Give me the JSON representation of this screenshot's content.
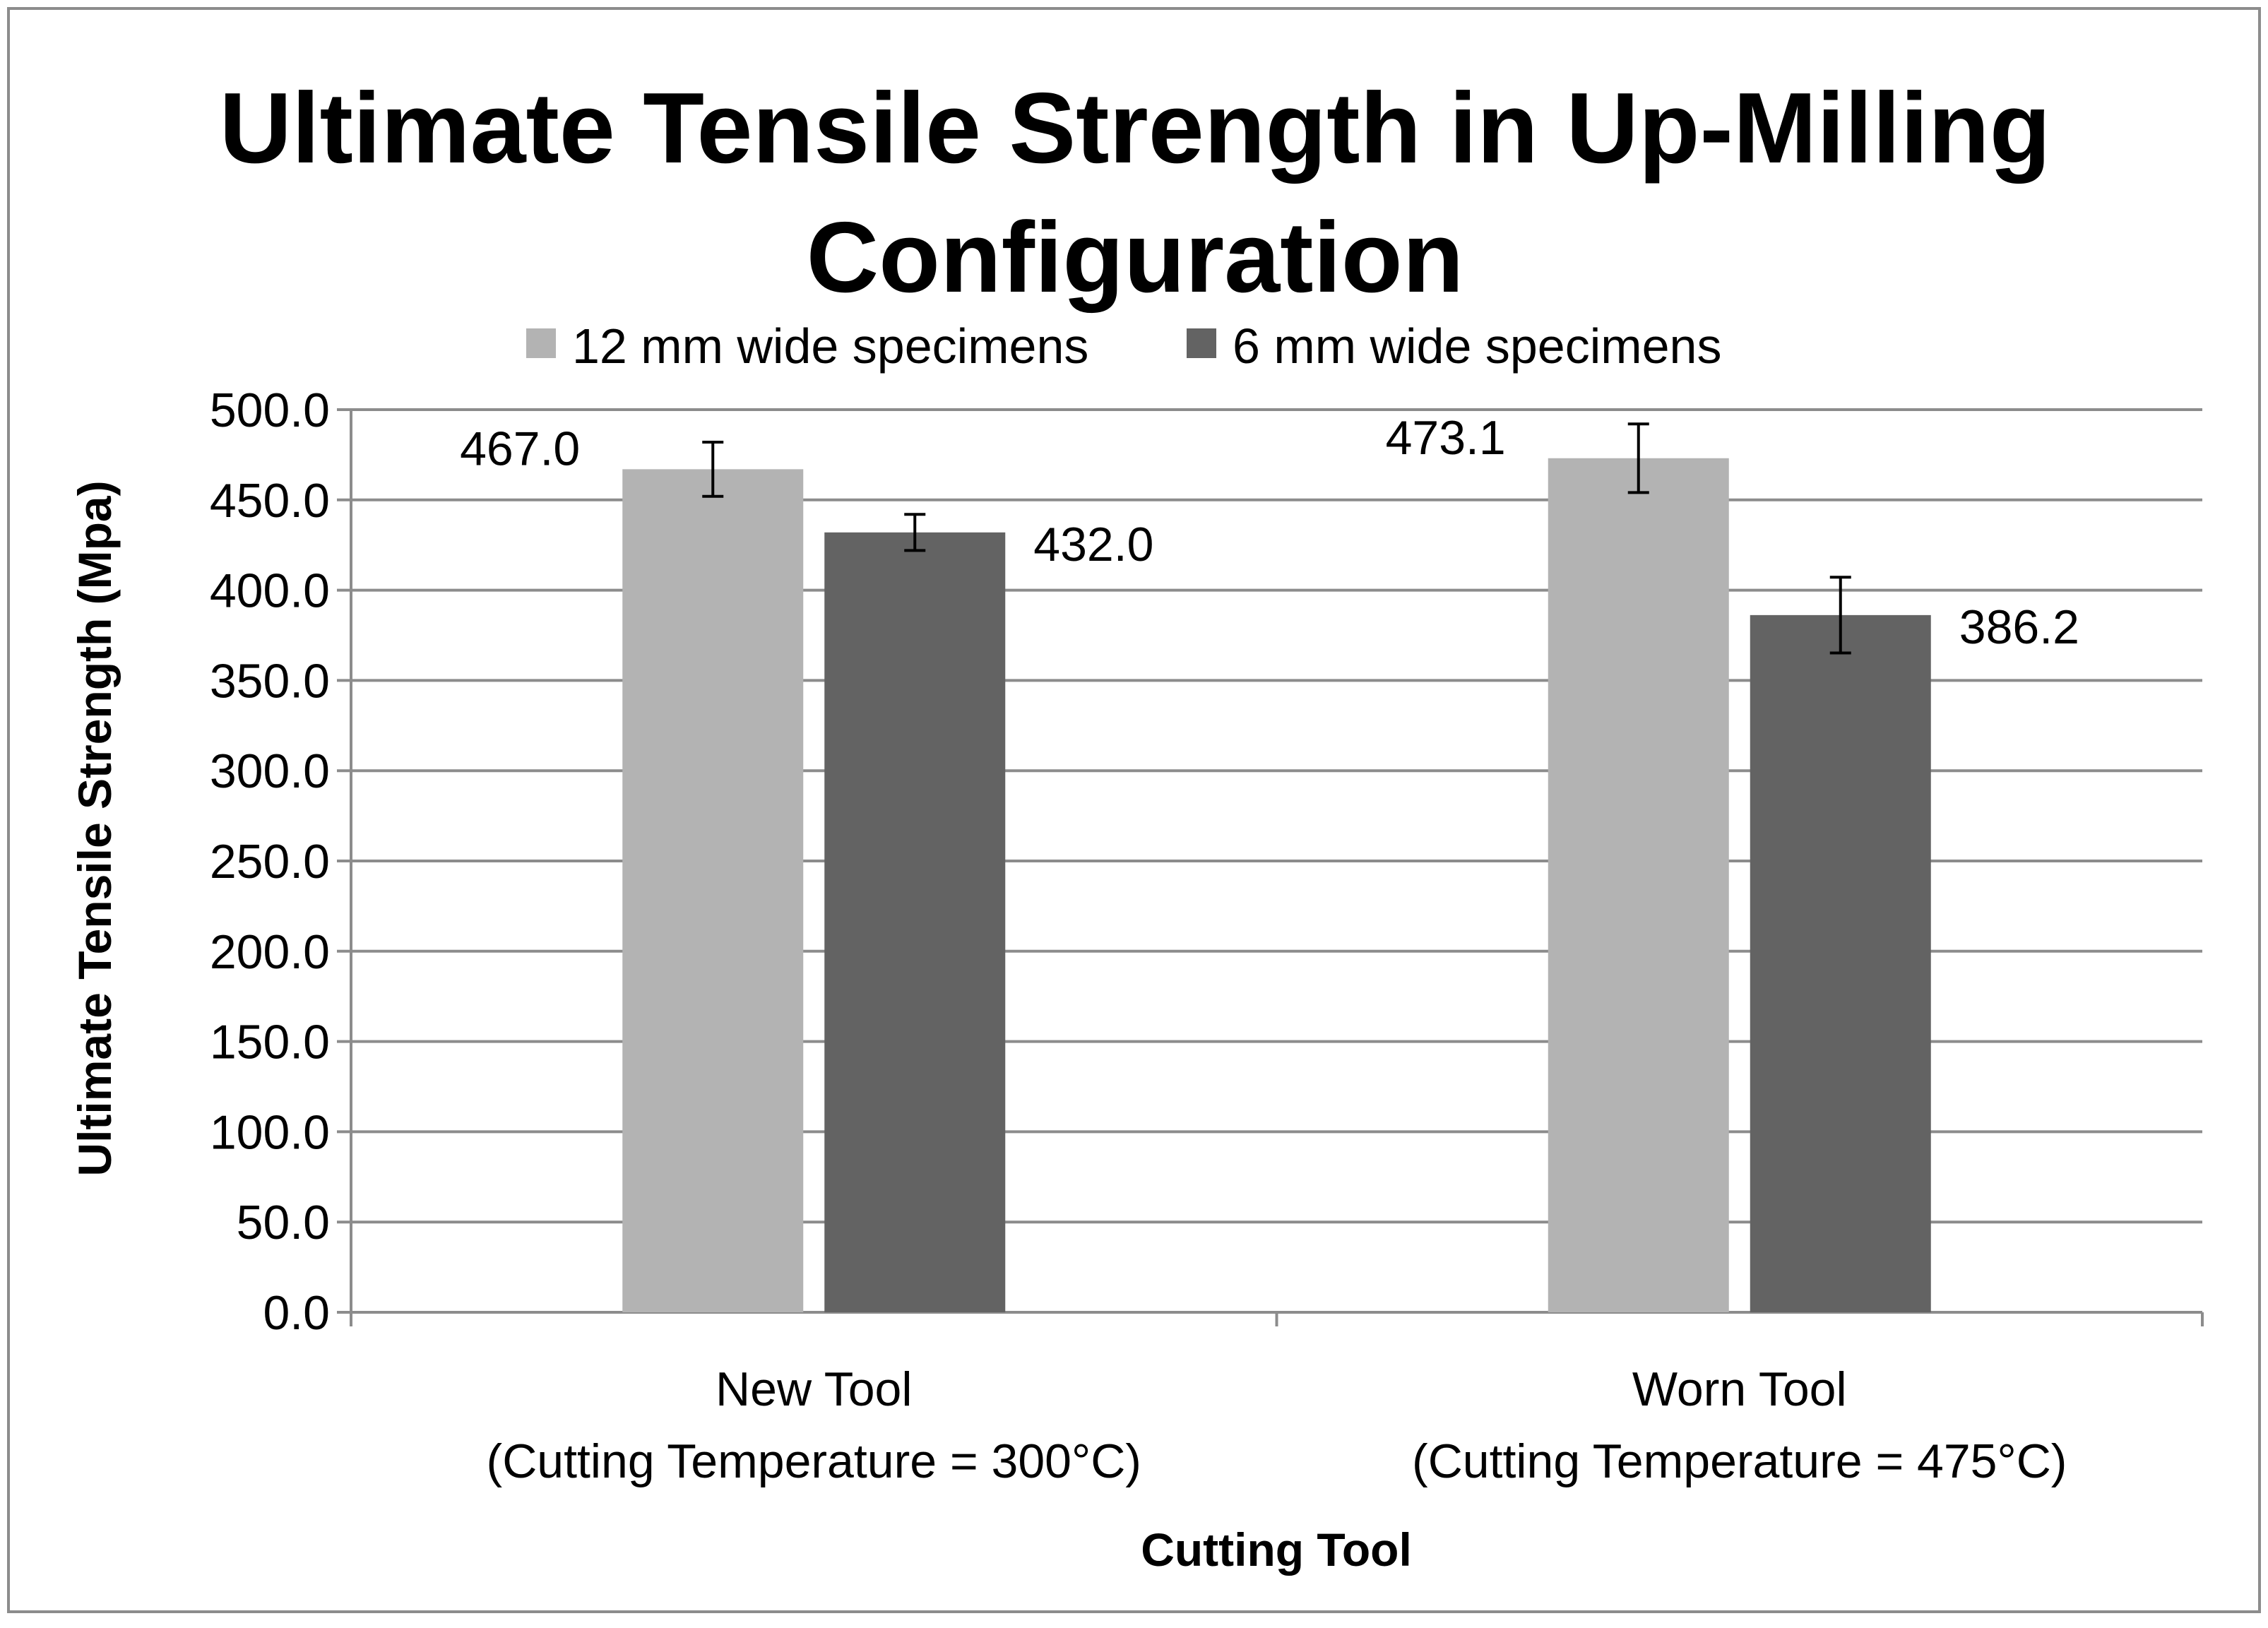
{
  "chart_data": {
    "type": "bar",
    "title_lines": [
      "Ultimate Tensile Strength in Up-Milling",
      "Configuration"
    ],
    "categories": [
      [
        "New Tool",
        "(Cutting Temperature = 300°C)"
      ],
      [
        "Worn Tool",
        "(Cutting Temperature = 475°C)"
      ]
    ],
    "series": [
      {
        "name": "12 mm wide specimens",
        "color": "#b3b3b3",
        "values": [
          467.0,
          473.1
        ],
        "value_labels": [
          "467.0",
          "473.1"
        ],
        "error": [
          15,
          19
        ]
      },
      {
        "name": "6 mm wide specimens",
        "color": "#636363",
        "values": [
          432.0,
          386.2
        ],
        "value_labels": [
          "432.0",
          "386.2"
        ],
        "error": [
          10,
          21
        ]
      }
    ],
    "ylabel": "Ultimate Tensile Strength (Mpa)",
    "xlabel": "Cutting Tool",
    "ylim": [
      0,
      500
    ],
    "yticks": [
      "0.0",
      "50.0",
      "100.0",
      "150.0",
      "200.0",
      "250.0",
      "300.0",
      "350.0",
      "400.0",
      "450.0",
      "500.0"
    ],
    "grid": true,
    "legend_position": "top"
  }
}
